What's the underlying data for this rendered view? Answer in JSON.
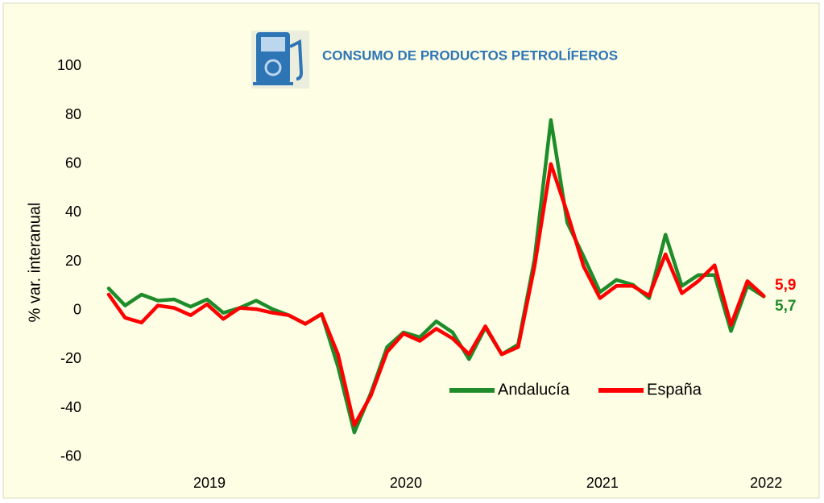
{
  "chart_data": {
    "type": "line",
    "title": "CONSUMO DE PRODUCTOS PETROLÍFEROS",
    "y_label": "% var. interanual",
    "categories": [
      null,
      null,
      null,
      null,
      null,
      null,
      "2019",
      null,
      null,
      null,
      null,
      null,
      null,
      null,
      null,
      null,
      null,
      null,
      "2020",
      null,
      null,
      null,
      null,
      null,
      null,
      null,
      null,
      null,
      null,
      null,
      "2021",
      null,
      null,
      null,
      null,
      null,
      null,
      null,
      null,
      null,
      "2022"
    ],
    "series": [
      {
        "name": "Andalucía",
        "color": "#1e8c2a",
        "values": [
          9,
          2,
          6.5,
          4,
          4.5,
          1.5,
          4.5,
          -1,
          1,
          4,
          0.5,
          -2,
          -5.5,
          -1.5,
          -23,
          -50,
          -34,
          -15,
          -9,
          -11,
          -4.5,
          -9,
          -20,
          -7,
          -18,
          -14,
          21,
          78,
          36,
          22,
          7.5,
          12.5,
          10.5,
          5,
          31,
          10,
          14.5,
          14.5,
          -8.5,
          10,
          5.7
        ],
        "value_labels": [
          null,
          null,
          null,
          null,
          null,
          null,
          null,
          null,
          null,
          null,
          null,
          null,
          null,
          null,
          null,
          null,
          null,
          null,
          null,
          null,
          null,
          null,
          null,
          null,
          null,
          null,
          null,
          null,
          null,
          null,
          null,
          null,
          null,
          null,
          null,
          null,
          null,
          null,
          null,
          null,
          "5,7"
        ]
      },
      {
        "name": "España",
        "color": "#ff0000",
        "values": [
          6.5,
          -3,
          -5,
          2,
          1,
          -2,
          2.5,
          -3.5,
          1,
          0.5,
          -1,
          -2,
          -5.5,
          -1.5,
          -18,
          -47,
          -35,
          -17,
          -9.5,
          -12.5,
          -7.5,
          -11.5,
          -18,
          -6.5,
          -18,
          -15,
          18,
          60,
          40,
          18,
          5,
          10,
          10,
          6,
          23,
          7,
          12,
          18.5,
          -6,
          12,
          5.9
        ],
        "value_labels": [
          null,
          null,
          null,
          null,
          null,
          null,
          null,
          null,
          null,
          null,
          null,
          null,
          null,
          null,
          null,
          null,
          null,
          null,
          null,
          null,
          null,
          null,
          null,
          null,
          null,
          null,
          null,
          null,
          null,
          null,
          null,
          null,
          null,
          null,
          null,
          null,
          null,
          null,
          null,
          null,
          "5,9"
        ]
      }
    ],
    "ylim": [
      -70,
      110
    ],
    "yticks": [
      -60,
      -40,
      -20,
      0,
      20,
      40,
      60,
      80,
      100
    ]
  }
}
